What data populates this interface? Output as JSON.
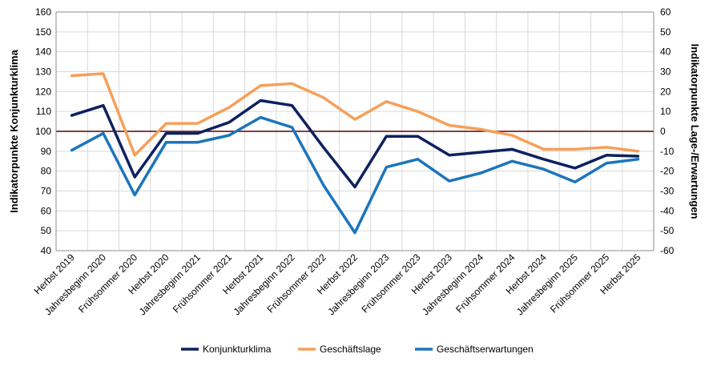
{
  "chart_data": {
    "type": "line",
    "categories": [
      "Herbst 2019",
      "Jahresbeginn 2020",
      "Frühsommer 2020",
      "Herbst 2020",
      "Jahresbeginn 2021",
      "Frühsommer 2021",
      "Herbst 2021",
      "Jahresbeginn 2022",
      "Frühsommer 2022",
      "Herbst 2022",
      "Jahresbeginn 2023",
      "Frühsommer 2023",
      "Herbst 2023",
      "Jahresbeginn 2024",
      "Frühsommer 2024",
      "Herbst 2024",
      "Jahresbeginn 2025",
      "Frühsommer 2025",
      "Herbst 2025"
    ],
    "ylabel_left": "Indikatorpunkte Konjunkturklima",
    "ylabel_right": "Indikatorpunkte Lage-/Erwartungen",
    "ylim_left": [
      40,
      160
    ],
    "ylim_right": [
      -60,
      60
    ],
    "y_ticks_left": [
      40,
      50,
      60,
      70,
      80,
      90,
      100,
      110,
      120,
      130,
      140,
      150,
      160
    ],
    "y_ticks_right": [
      -60,
      -50,
      -40,
      -30,
      -20,
      -10,
      0,
      10,
      20,
      30,
      40,
      50,
      60
    ],
    "reference_line": {
      "axis": "right",
      "value": 0,
      "color": "#5a0000"
    },
    "grid": true,
    "legend_position": "bottom",
    "series": [
      {
        "name": "Konjunkturklima",
        "axis": "left",
        "color": "#0d2160",
        "values": [
          108,
          113,
          77,
          99,
          99,
          104.5,
          115.5,
          113,
          92,
          72,
          97.5,
          97.5,
          88,
          89.5,
          91,
          86,
          81.5,
          88,
          87.5
        ]
      },
      {
        "name": "Geschäftslage",
        "axis": "right",
        "color": "#f5a05a",
        "values": [
          28,
          29,
          -12,
          4,
          4,
          12,
          23,
          24,
          17,
          6,
          15,
          10,
          3,
          1,
          -2,
          -9,
          -9,
          -8,
          -10
        ]
      },
      {
        "name": "Geschäftserwartungen",
        "axis": "right",
        "color": "#1b75bc",
        "values": [
          -9.5,
          -1,
          -32,
          -5.5,
          -5.5,
          -2,
          7,
          2,
          -27,
          -51,
          -18,
          -14,
          -25,
          -21,
          -15,
          -19,
          -25.5,
          -16,
          -14
        ]
      }
    ]
  }
}
